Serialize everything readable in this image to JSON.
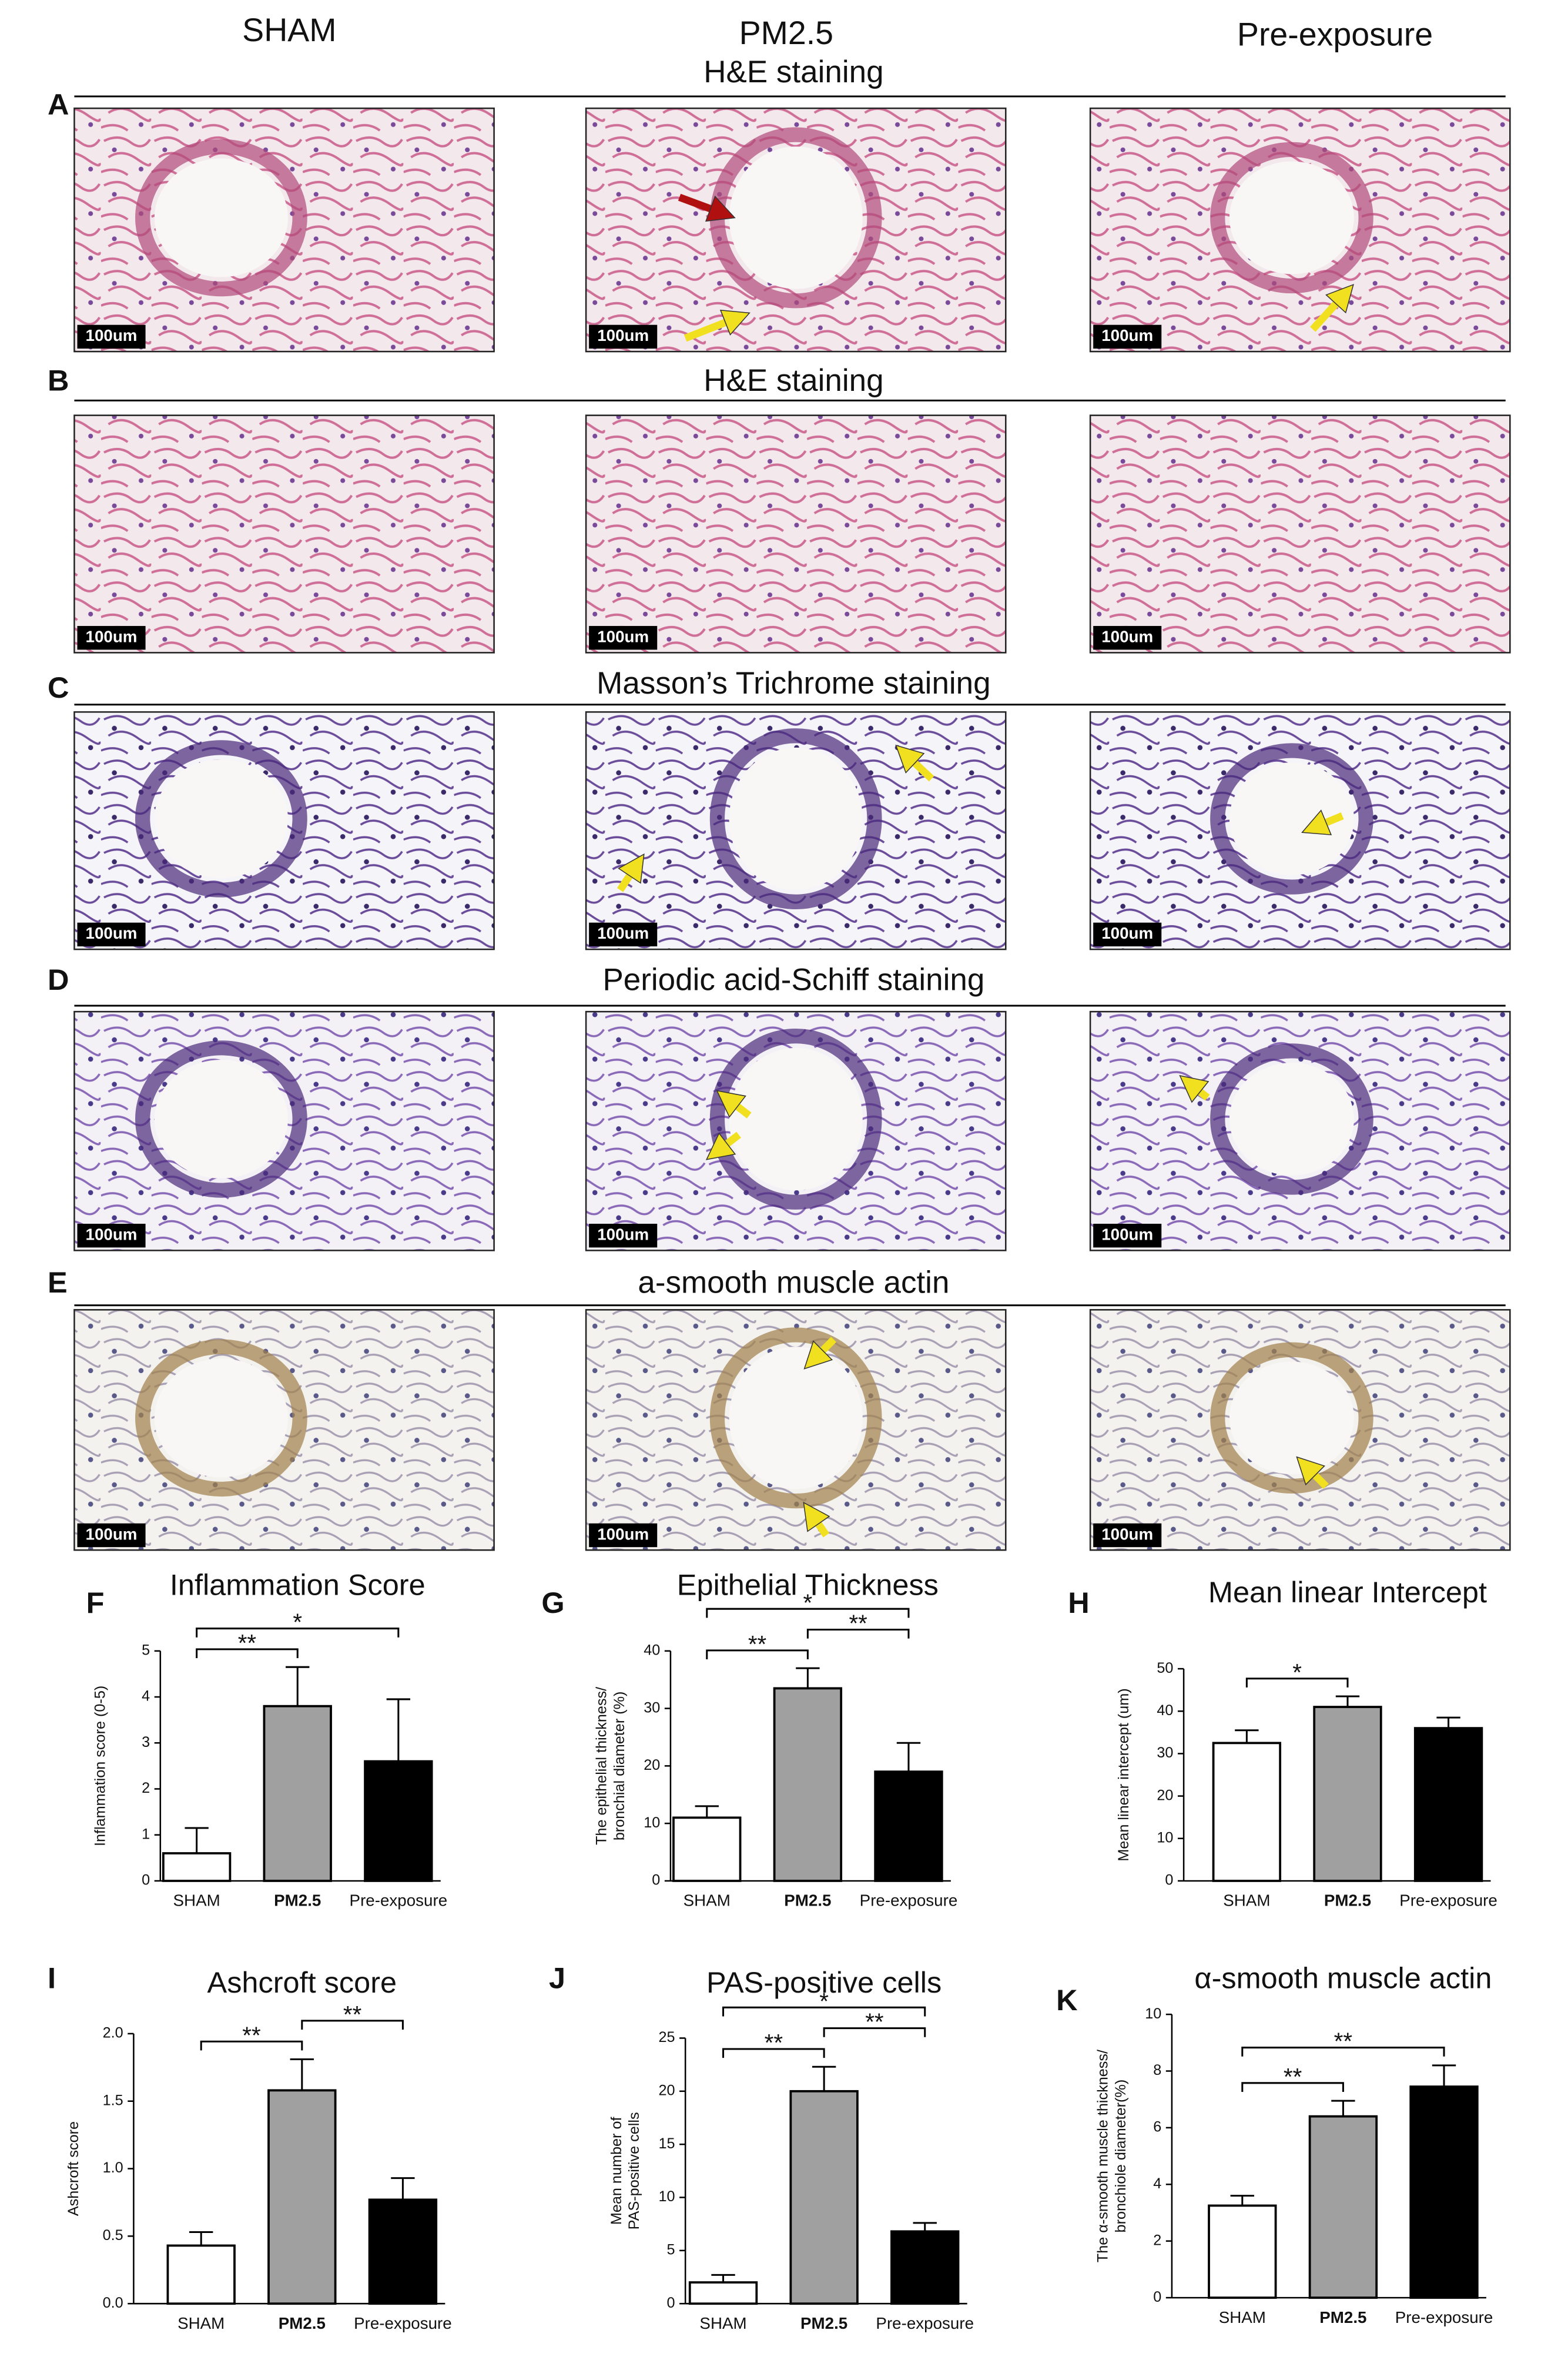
{
  "columns": [
    "SHAM",
    "PM2.5",
    "Pre-exposure"
  ],
  "panels": [
    {
      "letter": "A",
      "title": "H&E staining",
      "scale_labels": [
        "100um",
        "100um",
        "100um"
      ]
    },
    {
      "letter": "B",
      "title": "H&E staining",
      "scale_labels": [
        "100um",
        "100um",
        "100um"
      ]
    },
    {
      "letter": "C",
      "title": "Masson’s Trichrome staining",
      "scale_labels": [
        "100um",
        "100um",
        "100um"
      ]
    },
    {
      "letter": "D",
      "title": "Periodic acid-Schiff staining",
      "scale_labels": [
        "100um",
        "100um",
        "100um"
      ]
    },
    {
      "letter": "E",
      "title": "a-smooth muscle actin",
      "scale_labels": [
        "100um",
        "100um",
        "100um"
      ]
    }
  ],
  "chart_data": [
    {
      "letter": "F",
      "type": "bar",
      "title": "Inflammation Score",
      "ylabel": [
        "Inflammation score (0-5)"
      ],
      "categories": [
        "SHAM",
        "PM2.5",
        "Pre-exposure"
      ],
      "values": [
        0.6,
        3.8,
        2.6
      ],
      "errors": [
        0.55,
        0.85,
        1.35
      ],
      "colors": [
        "#ffffff",
        "#a0a0a0",
        "#000000"
      ],
      "ylim": [
        0,
        5
      ],
      "yticks": [
        0,
        1,
        2,
        3,
        4,
        5
      ],
      "annotations": [
        {
          "text": "**",
          "from": 0,
          "to": 1
        },
        {
          "text": "*",
          "from": 0,
          "to": 2
        }
      ]
    },
    {
      "letter": "G",
      "type": "bar",
      "title": "Epithelial Thickness",
      "ylabel": [
        "The epithelial thickness/",
        "bronchial diameter (%)"
      ],
      "categories": [
        "SHAM",
        "PM2.5",
        "Pre-exposure"
      ],
      "values": [
        11,
        33.5,
        19
      ],
      "errors": [
        2,
        3.5,
        5
      ],
      "colors": [
        "#ffffff",
        "#a0a0a0",
        "#000000"
      ],
      "ylim": [
        0,
        40
      ],
      "yticks": [
        0,
        10,
        20,
        30,
        40
      ],
      "annotations": [
        {
          "text": "**",
          "from": 0,
          "to": 1
        },
        {
          "text": "**",
          "from": 1,
          "to": 2
        },
        {
          "text": "*",
          "from": 0,
          "to": 2
        }
      ]
    },
    {
      "letter": "H",
      "type": "bar",
      "title": "Mean linear Intercept",
      "ylabel": [
        "Mean linear intercept (um)"
      ],
      "categories": [
        "SHAM",
        "PM2.5",
        "Pre-exposure"
      ],
      "values": [
        32.5,
        41,
        36
      ],
      "errors": [
        3,
        2.5,
        2.5
      ],
      "colors": [
        "#ffffff",
        "#a0a0a0",
        "#000000"
      ],
      "ylim": [
        0,
        50
      ],
      "yticks": [
        0,
        10,
        20,
        30,
        40,
        50
      ],
      "annotations": [
        {
          "text": "*",
          "from": 0,
          "to": 1
        }
      ]
    },
    {
      "letter": "I",
      "type": "bar",
      "title": "Ashcroft score",
      "ylabel": [
        "Ashcroft score"
      ],
      "categories": [
        "SHAM",
        "PM2.5",
        "Pre-exposure"
      ],
      "values": [
        0.43,
        1.58,
        0.77
      ],
      "errors": [
        0.1,
        0.23,
        0.16
      ],
      "colors": [
        "#ffffff",
        "#a0a0a0",
        "#000000"
      ],
      "ylim": [
        0,
        2
      ],
      "yticks": [
        {
          "value": 0,
          "label": "0.0"
        },
        0.5,
        {
          "value": 1,
          "label": "1.0"
        },
        1.5,
        {
          "value": 2,
          "label": "2.0"
        }
      ],
      "annotations": [
        {
          "text": "**",
          "from": 0,
          "to": 1
        },
        {
          "text": "**",
          "from": 1,
          "to": 2
        }
      ]
    },
    {
      "letter": "J",
      "type": "bar",
      "title": "PAS-positive cells",
      "ylabel": [
        "Mean number of",
        "PAS-positive cells"
      ],
      "categories": [
        "SHAM",
        "PM2.5",
        "Pre-exposure"
      ],
      "values": [
        2,
        20,
        6.8
      ],
      "errors": [
        0.7,
        2.3,
        0.8
      ],
      "colors": [
        "#ffffff",
        "#a0a0a0",
        "#000000"
      ],
      "ylim": [
        0,
        25
      ],
      "yticks": [
        0,
        5,
        10,
        15,
        20,
        25
      ],
      "annotations": [
        {
          "text": "**",
          "from": 0,
          "to": 1
        },
        {
          "text": "**",
          "from": 1,
          "to": 2
        },
        {
          "text": "*",
          "from": 0,
          "to": 2
        }
      ]
    },
    {
      "letter": "K",
      "type": "bar",
      "title": "α-smooth muscle actin",
      "ylabel": [
        "The α-smooth muscle thickness/",
        "bronchiole diameter(%)"
      ],
      "categories": [
        "SHAM",
        "PM2.5",
        "Pre-exposure"
      ],
      "values": [
        3.25,
        6.4,
        7.45
      ],
      "errors": [
        0.35,
        0.55,
        0.75
      ],
      "colors": [
        "#ffffff",
        "#a0a0a0",
        "#000000"
      ],
      "ylim": [
        0,
        10
      ],
      "yticks": [
        0,
        2,
        4,
        6,
        8,
        10
      ],
      "annotations": [
        {
          "text": "**",
          "from": 0,
          "to": 1
        },
        {
          "text": "**",
          "from": 0,
          "to": 2
        }
      ]
    }
  ]
}
